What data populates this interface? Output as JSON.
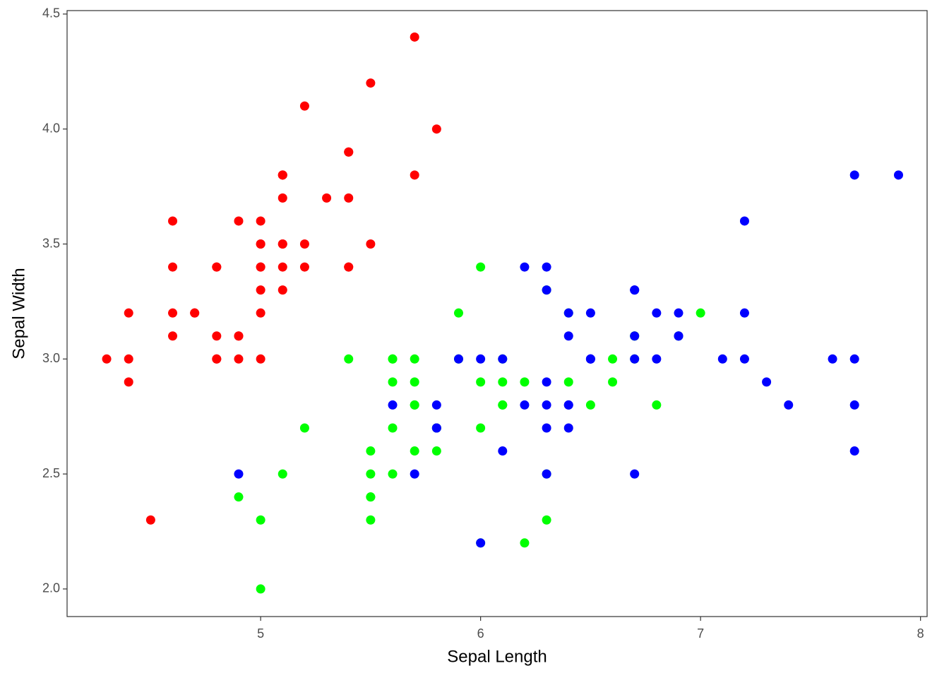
{
  "chart_data": {
    "type": "scatter",
    "x_label": "Sepal Length",
    "y_label": "Sepal Width",
    "xlim": [
      4.12,
      8.03
    ],
    "ylim": [
      1.88,
      4.515
    ],
    "xticks": [
      5,
      6,
      7,
      8
    ],
    "yticks": [
      {
        "value": 2,
        "label": "2.0"
      },
      2.5,
      {
        "value": 3,
        "label": "3.0"
      },
      3.5,
      {
        "value": 4,
        "label": "4.0"
      },
      4.5
    ],
    "grid": false,
    "series": [
      {
        "color": "#ff0000",
        "x": [
          5.1,
          4.9,
          4.7,
          4.6,
          5.0,
          5.4,
          4.6,
          5.0,
          4.4,
          4.9,
          5.4,
          4.8,
          4.8,
          4.3,
          5.8,
          5.7,
          5.4,
          5.1,
          5.7,
          5.1,
          5.4,
          5.1,
          4.6,
          5.1,
          4.8,
          5.0,
          5.0,
          5.2,
          5.2,
          4.7,
          4.8,
          5.4,
          5.2,
          5.5,
          4.9,
          5.0,
          5.5,
          4.9,
          4.4,
          5.1,
          5.0,
          4.5,
          4.4,
          5.0,
          5.1,
          4.8,
          5.1,
          4.6,
          5.3,
          5.0
        ],
        "values": [
          3.5,
          3.0,
          3.2,
          3.1,
          3.6,
          3.9,
          3.4,
          3.4,
          2.9,
          3.1,
          3.7,
          3.4,
          3.0,
          3.0,
          4.0,
          4.4,
          3.9,
          3.5,
          3.8,
          3.8,
          3.4,
          3.7,
          3.6,
          3.3,
          3.4,
          3.0,
          3.4,
          3.5,
          3.4,
          3.2,
          3.1,
          3.4,
          4.1,
          4.2,
          3.1,
          3.2,
          3.5,
          3.6,
          3.0,
          3.4,
          3.5,
          2.3,
          3.2,
          3.5,
          3.8,
          3.0,
          3.8,
          3.2,
          3.7,
          3.3
        ]
      },
      {
        "color": "#00ff00",
        "x": [
          7.0,
          6.4,
          6.9,
          5.5,
          6.5,
          5.7,
          6.3,
          4.9,
          6.6,
          5.2,
          5.0,
          5.9,
          6.0,
          6.1,
          5.6,
          6.7,
          5.6,
          5.8,
          6.2,
          5.6,
          5.9,
          6.1,
          6.3,
          6.1,
          6.4,
          6.6,
          6.8,
          6.7,
          6.0,
          5.7,
          5.5,
          5.5,
          5.8,
          6.0,
          5.4,
          6.0,
          6.7,
          6.3,
          5.6,
          5.5,
          5.5,
          6.1,
          5.8,
          5.0,
          5.6,
          5.7,
          5.7,
          6.2,
          5.1,
          5.7
        ],
        "values": [
          3.2,
          3.2,
          3.1,
          2.3,
          2.8,
          2.8,
          3.3,
          2.4,
          2.9,
          2.7,
          2.0,
          3.0,
          2.2,
          2.9,
          2.9,
          3.1,
          3.0,
          2.7,
          2.2,
          2.5,
          3.2,
          2.8,
          2.5,
          2.8,
          2.9,
          3.0,
          2.8,
          3.0,
          2.9,
          2.6,
          2.4,
          2.4,
          2.7,
          2.7,
          3.0,
          3.4,
          3.1,
          2.3,
          3.0,
          2.5,
          2.6,
          3.0,
          2.6,
          2.3,
          2.7,
          3.0,
          2.9,
          2.9,
          2.5,
          2.8
        ]
      },
      {
        "color": "#0000ff",
        "x": [
          6.3,
          5.8,
          7.1,
          6.3,
          6.5,
          7.6,
          4.9,
          7.3,
          6.7,
          7.2,
          6.5,
          6.4,
          6.8,
          5.7,
          5.8,
          6.4,
          6.5,
          7.7,
          7.7,
          6.0,
          6.9,
          5.6,
          7.7,
          6.3,
          6.7,
          7.2,
          6.2,
          6.1,
          6.4,
          7.2,
          7.4,
          7.9,
          6.4,
          6.3,
          6.1,
          7.7,
          6.3,
          6.4,
          6.0,
          6.9,
          6.7,
          6.9,
          5.8,
          6.8,
          6.7,
          6.7,
          6.3,
          6.5,
          6.2,
          5.9
        ],
        "values": [
          3.3,
          2.7,
          3.0,
          2.9,
          3.0,
          3.0,
          2.5,
          2.9,
          2.5,
          3.6,
          3.2,
          2.7,
          3.0,
          2.5,
          2.8,
          3.2,
          3.0,
          3.8,
          2.6,
          2.2,
          3.2,
          2.8,
          2.8,
          2.7,
          3.3,
          3.2,
          2.8,
          3.0,
          2.8,
          3.0,
          2.8,
          3.8,
          2.8,
          2.8,
          2.6,
          3.0,
          3.4,
          3.1,
          3.0,
          3.1,
          3.1,
          3.1,
          2.7,
          3.2,
          3.3,
          3.0,
          2.5,
          3.0,
          3.4,
          3.0
        ]
      }
    ]
  }
}
